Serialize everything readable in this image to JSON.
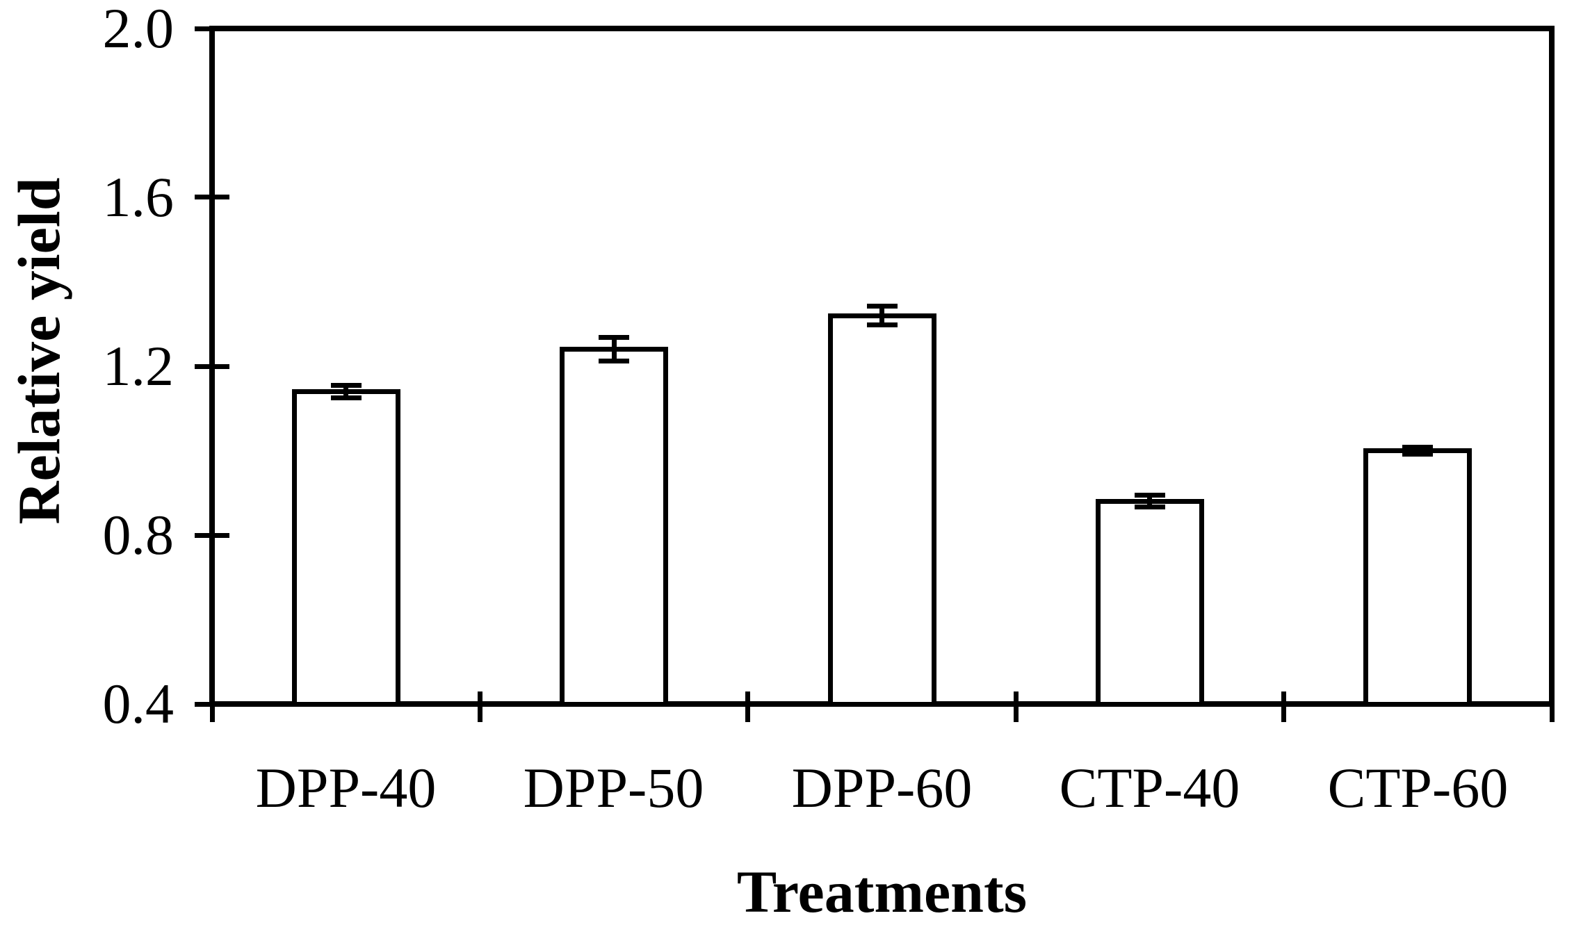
{
  "figure": {
    "background": "#ffffff",
    "ink": "#000000"
  },
  "chart_data": {
    "type": "bar",
    "title": "",
    "categories": [
      "DPP-40",
      "DPP-50",
      "DPP-60",
      "CTP-40",
      "CTP-60"
    ],
    "values": [
      1.14,
      1.24,
      1.32,
      0.88,
      1.0
    ],
    "errors": [
      0.015,
      0.028,
      0.022,
      0.014,
      0.009
    ],
    "xlabel": "Treatments",
    "ylabel": "Relative yield",
    "ylim": [
      0.4,
      2.0
    ],
    "yticks": [
      2.0,
      1.6,
      1.2,
      0.8,
      0.4
    ],
    "ytick_labels": [
      "2.0",
      "1.6",
      "1.2",
      "0.8",
      "0.4"
    ],
    "bar_fill": "#ffffff",
    "bar_stroke": "#000000",
    "grid": false,
    "legend": "none",
    "error_bars": "present"
  }
}
